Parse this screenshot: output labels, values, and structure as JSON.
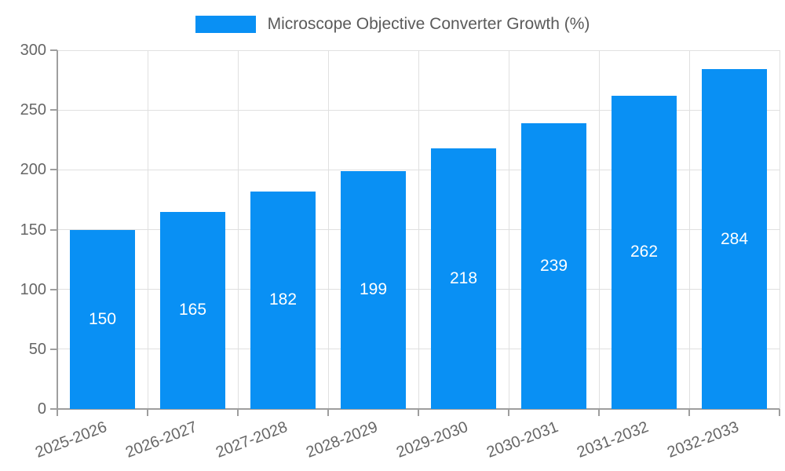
{
  "chart_data": {
    "type": "bar",
    "title": "Microscope Objective Converter Growth (%)",
    "categories": [
      "2025-2026",
      "2026-2027",
      "2027-2028",
      "2028-2029",
      "2029-2030",
      "2030-2031",
      "2031-2032",
      "2032-2033"
    ],
    "values": [
      150,
      165,
      182,
      199,
      218,
      239,
      262,
      284
    ],
    "xlabel": "",
    "ylabel": "",
    "ylim": [
      0,
      300
    ],
    "yticks": [
      0,
      50,
      100,
      150,
      200,
      250,
      300
    ],
    "grid": true,
    "legend_position": "top-center",
    "x_label_rotation_deg": -21,
    "colors": {
      "bar": "#0990f4",
      "bar_value_label": "#ffffff",
      "grid": "#e0e0e0",
      "axis": "#9e9e9e",
      "tick_text": "#666666",
      "legend_text": "#5a5a5a",
      "background": "#ffffff"
    }
  }
}
